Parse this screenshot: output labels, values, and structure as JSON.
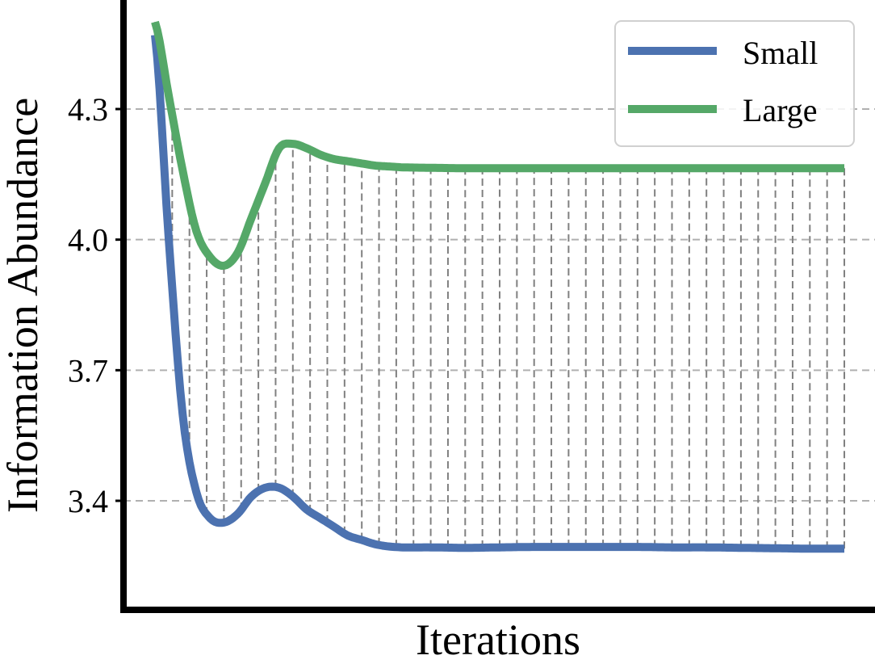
{
  "chart_data": {
    "type": "line",
    "title": "",
    "xlabel": "Iterations",
    "ylabel": "Information Abundance",
    "ylim": [
      3.05,
      4.52
    ],
    "yticks": [
      "3.4",
      "3.7",
      "4.0",
      "4.3"
    ],
    "xticks": [],
    "grid": "horizontal dashed",
    "legend_position": "top-right",
    "fill_between": "vertical dashed lines between series",
    "x": [
      0,
      0.02,
      0.04,
      0.06,
      0.08,
      0.1,
      0.12,
      0.14,
      0.16,
      0.18,
      0.2,
      0.22,
      0.24,
      0.26,
      0.28,
      0.3,
      0.32,
      0.34,
      0.36,
      0.4,
      0.45,
      0.5,
      0.55,
      0.6,
      0.65,
      0.7,
      0.75,
      0.8,
      0.85,
      0.9,
      0.95,
      1.0
    ],
    "series": [
      {
        "name": "Small",
        "color": "#4c72b0",
        "values": [
          4.47,
          4.0,
          3.6,
          3.42,
          3.36,
          3.35,
          3.37,
          3.41,
          3.43,
          3.43,
          3.41,
          3.38,
          3.36,
          3.34,
          3.32,
          3.31,
          3.3,
          3.295,
          3.293,
          3.293,
          3.292,
          3.293,
          3.294,
          3.294,
          3.294,
          3.294,
          3.293,
          3.293,
          3.292,
          3.291,
          3.29,
          3.29
        ]
      },
      {
        "name": "Large",
        "color": "#55a868",
        "values": [
          4.5,
          4.33,
          4.16,
          4.02,
          3.96,
          3.94,
          3.97,
          4.05,
          4.13,
          4.21,
          4.22,
          4.21,
          4.195,
          4.185,
          4.18,
          4.175,
          4.17,
          4.168,
          4.166,
          4.165,
          4.164,
          4.164,
          4.164,
          4.164,
          4.164,
          4.164,
          4.164,
          4.164,
          4.164,
          4.164,
          4.164,
          4.164
        ]
      }
    ]
  }
}
